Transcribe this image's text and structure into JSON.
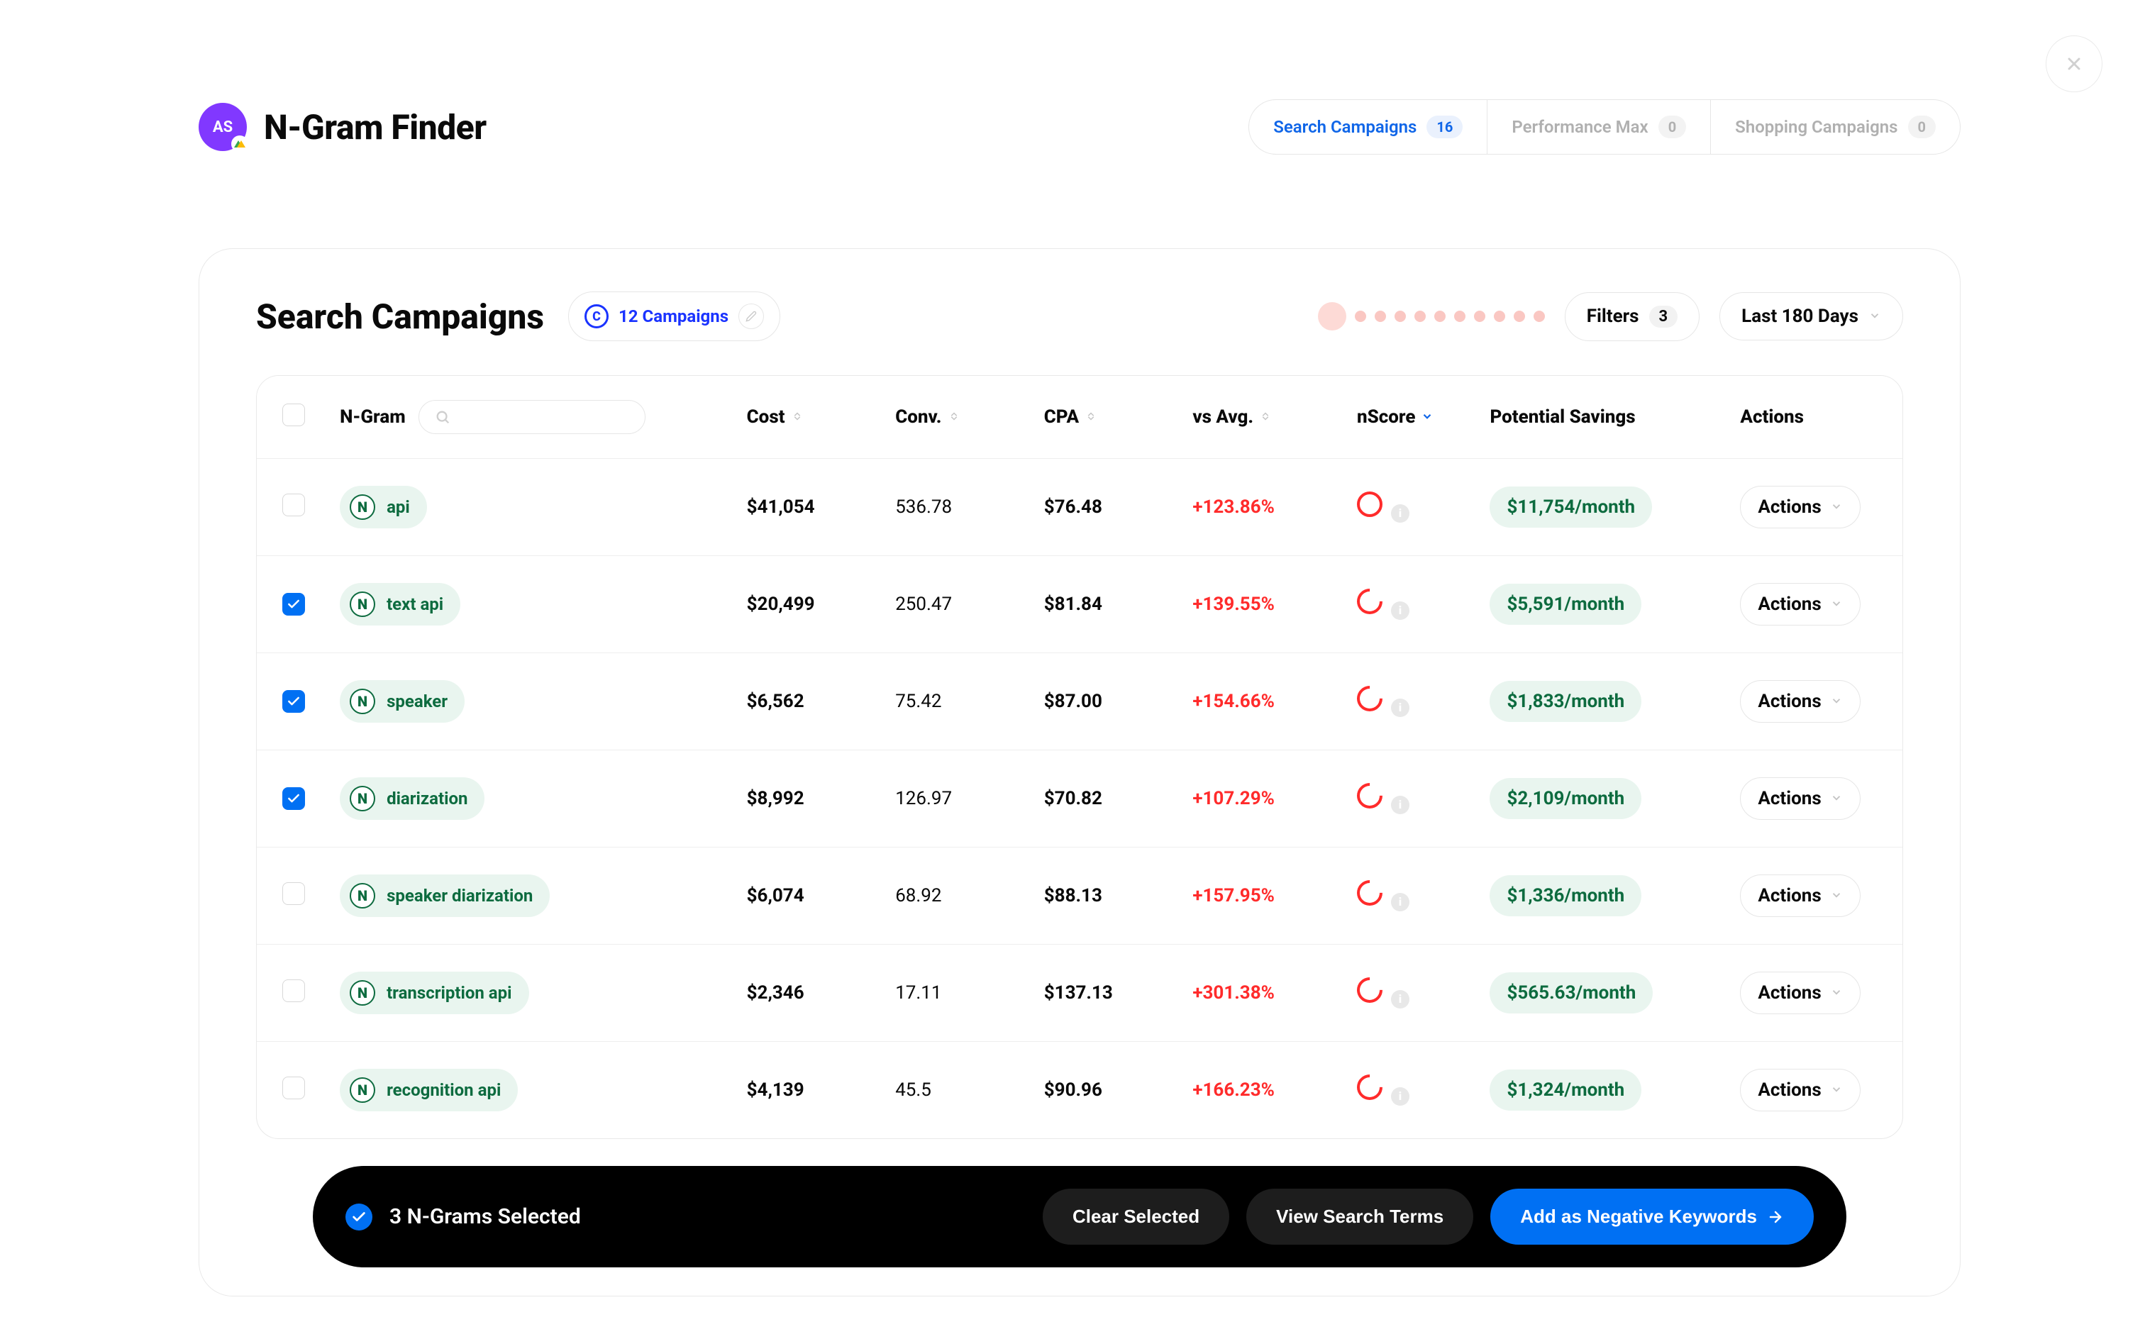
{
  "header": {
    "avatar_initials": "AS",
    "title": "N-Gram Finder",
    "tabs": [
      {
        "label": "Search Campaigns",
        "count": "16",
        "active": true
      },
      {
        "label": "Performance Max",
        "count": "0",
        "active": false
      },
      {
        "label": "Shopping Campaigns",
        "count": "0",
        "active": false
      }
    ]
  },
  "card": {
    "title": "Search Campaigns",
    "campaigns_label": "12 Campaigns",
    "filters_label": "Filters",
    "filters_count": "3",
    "date_range": "Last 180 Days",
    "dot_count": 11
  },
  "table": {
    "columns": {
      "ngram": "N-Gram",
      "cost": "Cost",
      "conv": "Conv.",
      "cpa": "CPA",
      "vs_avg": "vs Avg.",
      "nscore": "nScore",
      "savings": "Potential Savings",
      "actions": "Actions"
    },
    "actions_btn_label": "Actions",
    "rows": [
      {
        "checked": false,
        "ngram": "api",
        "cost": "$41,054",
        "conv": "536.78",
        "cpa": "$76.48",
        "vs_avg": "+123.86%",
        "nscore_full": true,
        "savings": "$11,754/month"
      },
      {
        "checked": true,
        "ngram": "text api",
        "cost": "$20,499",
        "conv": "250.47",
        "cpa": "$81.84",
        "vs_avg": "+139.55%",
        "nscore_full": false,
        "savings": "$5,591/month"
      },
      {
        "checked": true,
        "ngram": "speaker",
        "cost": "$6,562",
        "conv": "75.42",
        "cpa": "$87.00",
        "vs_avg": "+154.66%",
        "nscore_full": false,
        "savings": "$1,833/month"
      },
      {
        "checked": true,
        "ngram": "diarization",
        "cost": "$8,992",
        "conv": "126.97",
        "cpa": "$70.82",
        "vs_avg": "+107.29%",
        "nscore_full": false,
        "savings": "$2,109/month"
      },
      {
        "checked": false,
        "ngram": "speaker diarization",
        "cost": "$6,074",
        "conv": "68.92",
        "cpa": "$88.13",
        "vs_avg": "+157.95%",
        "nscore_full": false,
        "savings": "$1,336/month"
      },
      {
        "checked": false,
        "ngram": "transcription api",
        "cost": "$2,346",
        "conv": "17.11",
        "cpa": "$137.13",
        "vs_avg": "+301.38%",
        "nscore_full": false,
        "savings": "$565.63/month"
      },
      {
        "checked": false,
        "ngram": "recognition api",
        "cost": "$4,139",
        "conv": "45.5",
        "cpa": "$90.96",
        "vs_avg": "+166.23%",
        "nscore_full": false,
        "savings": "$1,324/month"
      }
    ]
  },
  "footer": {
    "selected_text": "3 N-Grams Selected",
    "clear_label": "Clear Selected",
    "view_label": "View Search Terms",
    "add_label": "Add as Negative Keywords"
  },
  "colors": {
    "primary_blue": "#0070f3",
    "link_blue": "#1066e8",
    "purple": "#8138ff",
    "green_text": "#0d6b3f",
    "green_bg": "#e9f5ef",
    "red": "#ff2b2b",
    "dot_pink": "#fac7c2",
    "border": "#e6e6e6"
  }
}
